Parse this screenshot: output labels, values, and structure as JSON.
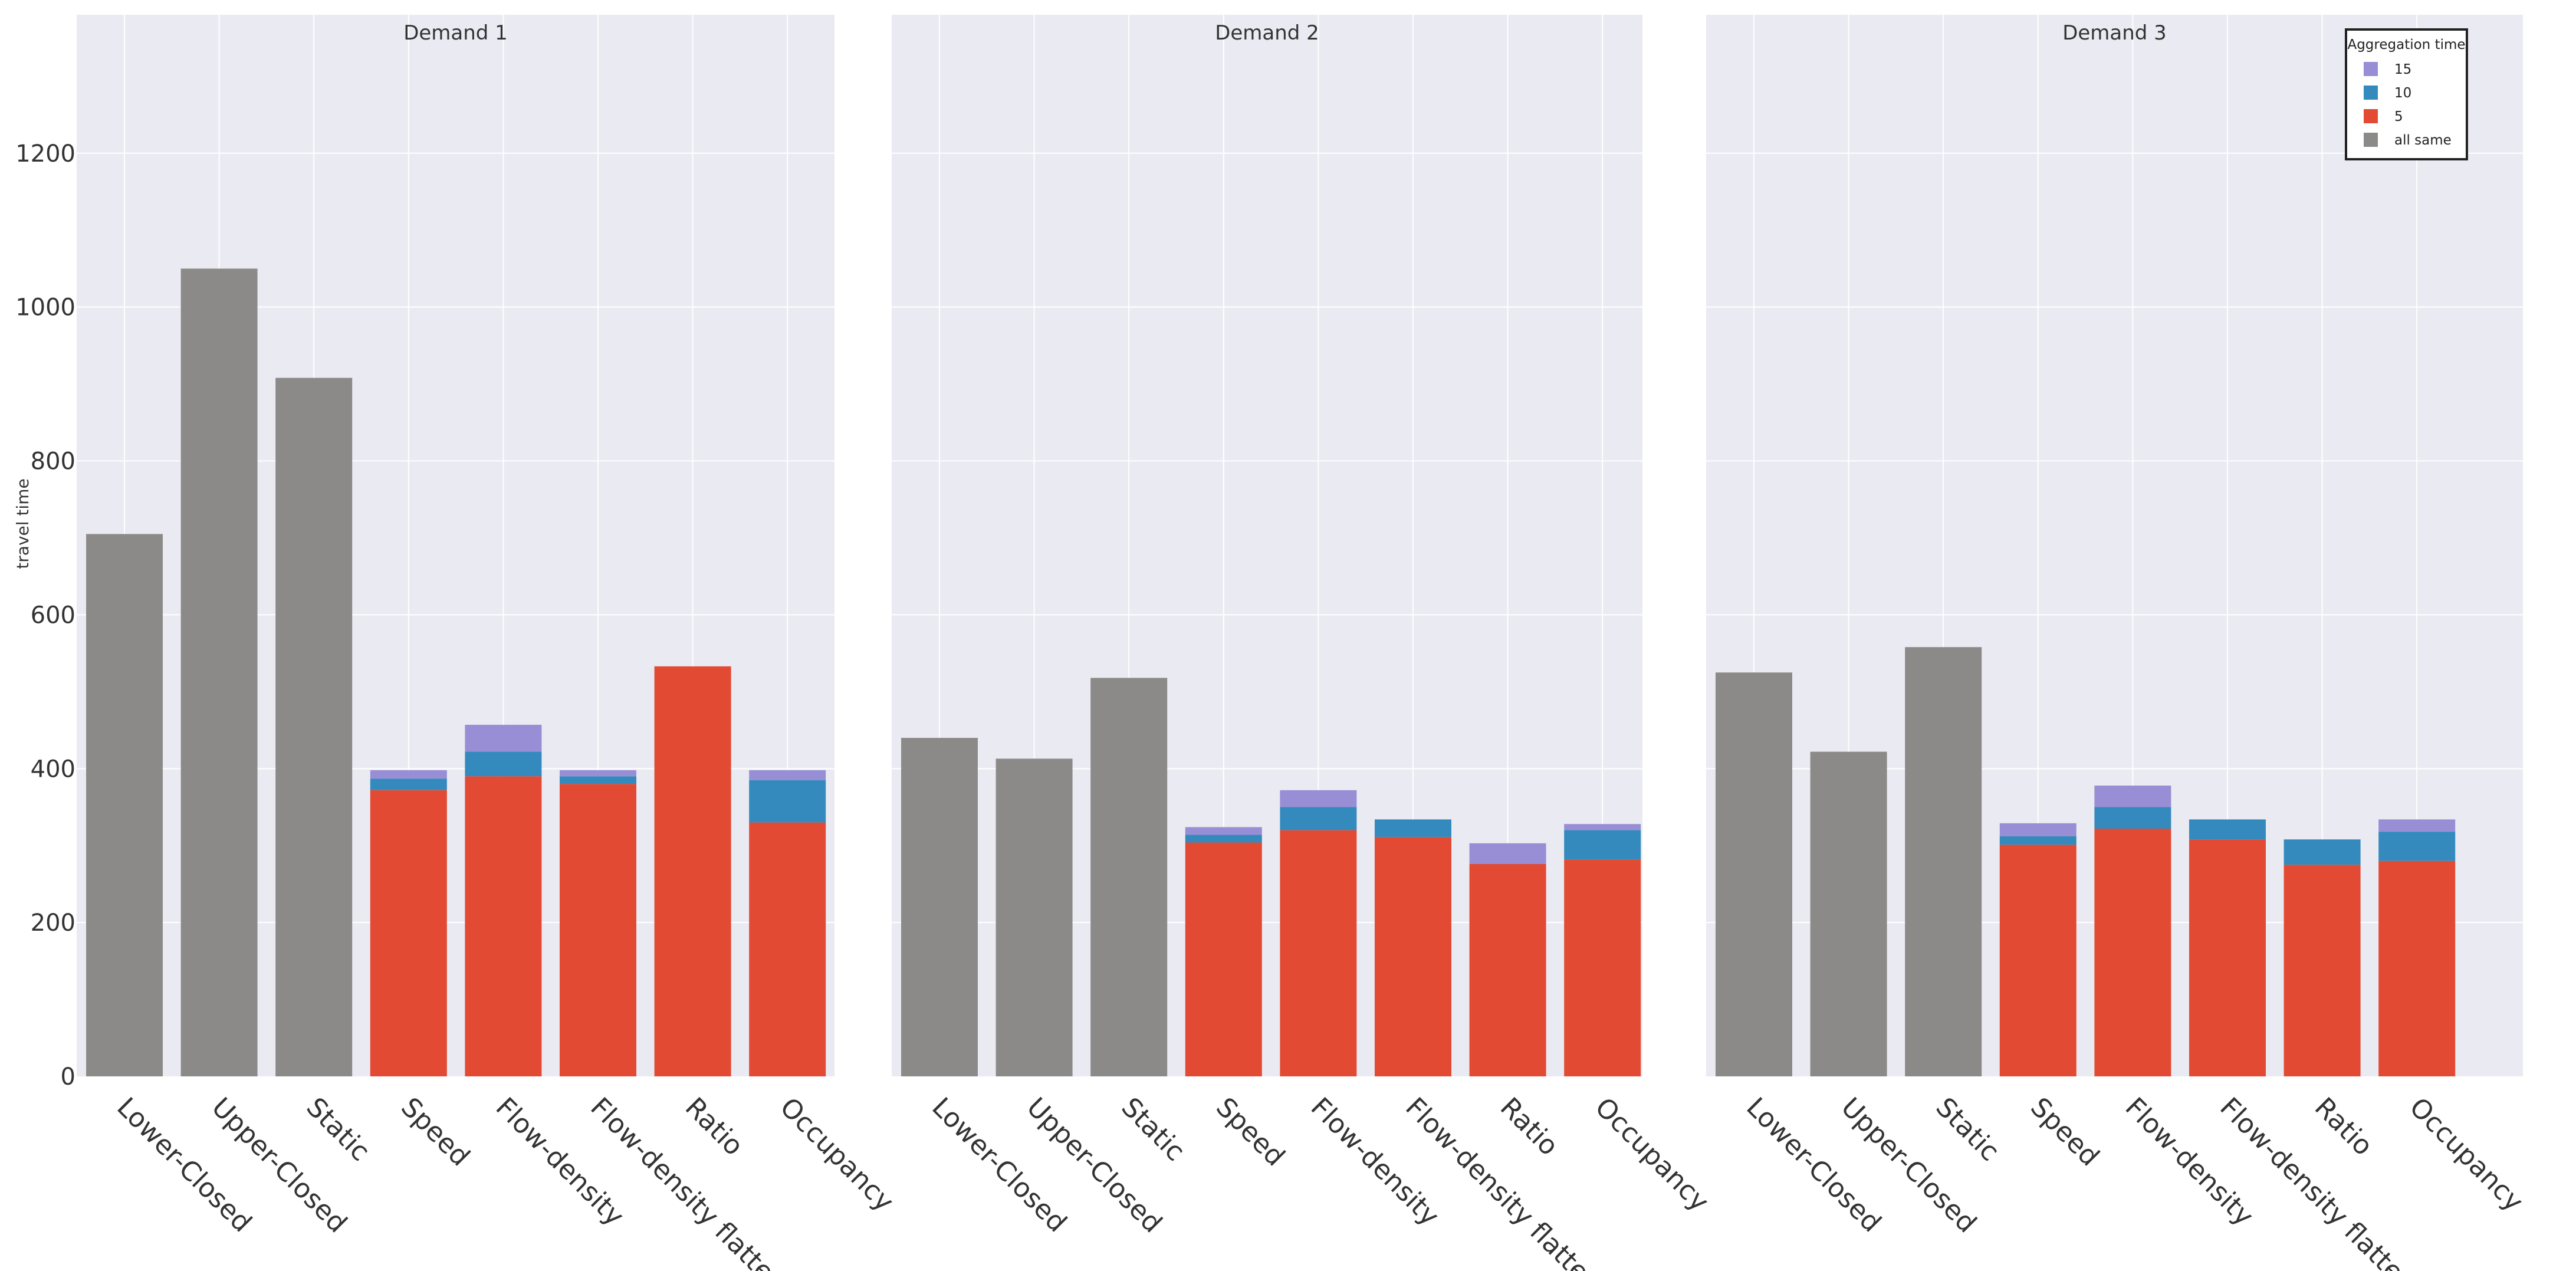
{
  "chart_data": {
    "type": "bar",
    "stacked": true,
    "ylabel": "travel time",
    "ylim": [
      0,
      1380
    ],
    "yticks": [
      0,
      200,
      400,
      600,
      800,
      1000,
      1200
    ],
    "grid": true,
    "categories": [
      "Lower-Closed",
      "Upper-Closed",
      "Static",
      "Speed",
      "Flow-density",
      "Flow-density flatten",
      "Ratio",
      "Occupancy"
    ],
    "legend": {
      "title": "Aggregation time",
      "position": "top-right",
      "entries": [
        {
          "label": "15",
          "color": "#988ed5"
        },
        {
          "label": "10",
          "color": "#348abd"
        },
        {
          "label": "5",
          "color": "#e24a33"
        },
        {
          "label": "all same",
          "color": "#8c8a88"
        }
      ]
    },
    "panels": [
      {
        "title": "Demand 1",
        "all_same": [
          705,
          1050,
          908,
          null,
          null,
          null,
          null,
          null
        ],
        "v5": [
          null,
          null,
          null,
          372,
          390,
          380,
          533,
          330
        ],
        "v10": [
          null,
          null,
          null,
          387,
          422,
          390,
          533,
          385
        ],
        "v15": [
          null,
          null,
          null,
          398,
          457,
          398,
          533,
          398
        ]
      },
      {
        "title": "Demand 2",
        "all_same": [
          440,
          413,
          518,
          null,
          null,
          null,
          null,
          null
        ],
        "v5": [
          null,
          null,
          null,
          304,
          320,
          311,
          276,
          282
        ],
        "v10": [
          null,
          null,
          null,
          314,
          350,
          334,
          276,
          320
        ],
        "v15": [
          null,
          null,
          null,
          324,
          372,
          334,
          303,
          328
        ]
      },
      {
        "title": "Demand 3",
        "all_same": [
          525,
          422,
          558,
          null,
          null,
          null,
          null,
          null
        ],
        "v5": [
          null,
          null,
          null,
          301,
          322,
          308,
          275,
          280
        ],
        "v10": [
          null,
          null,
          null,
          312,
          350,
          334,
          308,
          318
        ],
        "v15": [
          null,
          null,
          null,
          329,
          378,
          334,
          308,
          334
        ]
      }
    ]
  }
}
